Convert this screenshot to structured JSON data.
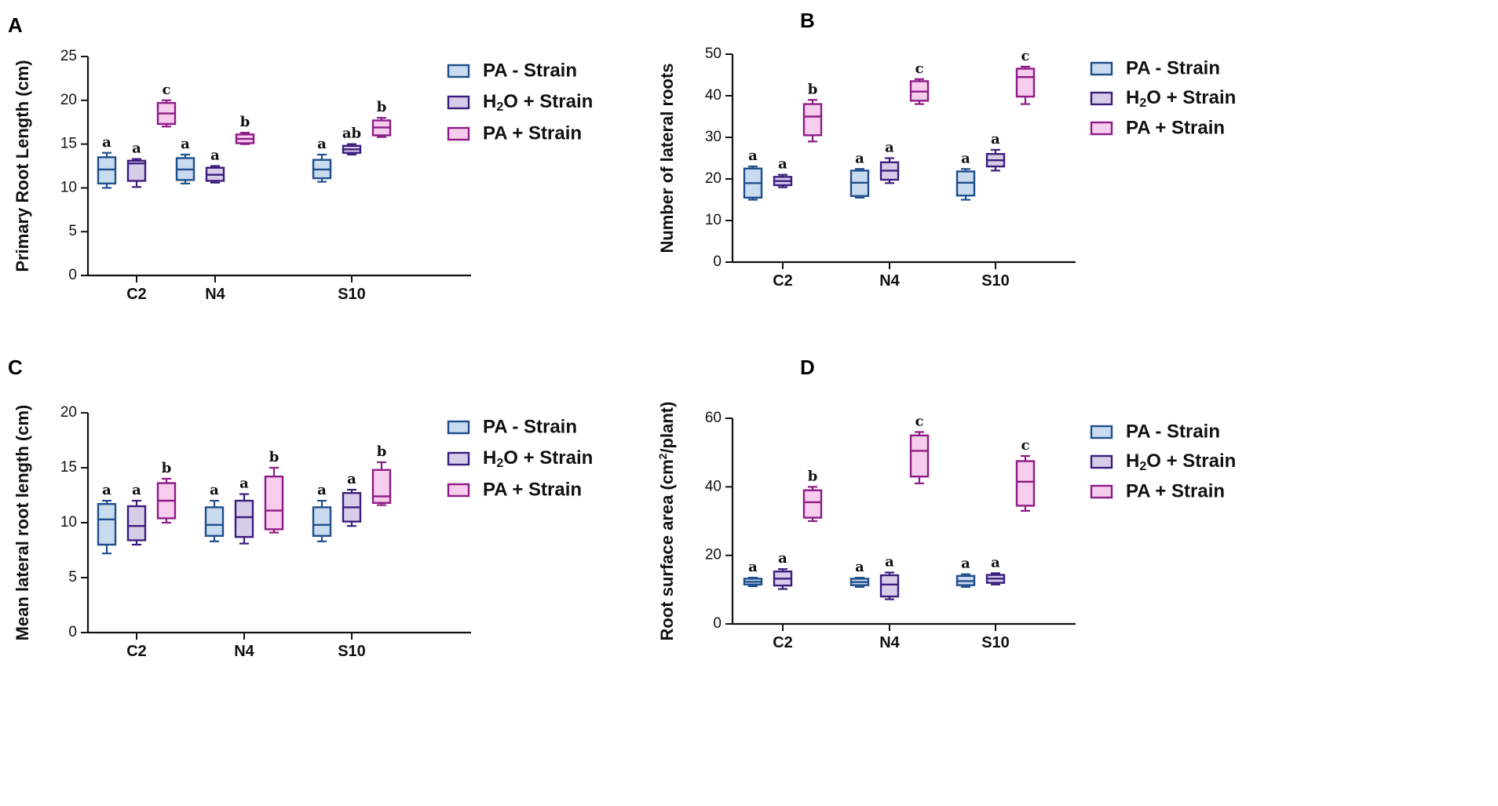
{
  "legend": {
    "items": [
      {
        "name": "PA - Strain",
        "fill": "#c9dbef",
        "stroke": "#1f4e8c"
      },
      {
        "name": "H2O + Strain",
        "fill": "#d8cde9",
        "stroke": "#3b1d7d"
      },
      {
        "name": "PA + Strain",
        "fill": "#f6cdec",
        "stroke": "#8e1b87"
      }
    ]
  },
  "chart_data": [
    {
      "panel": "A",
      "type": "box",
      "ylabel": "Primary Root Length (cm)",
      "ylim": [
        0,
        25
      ],
      "yticks": [
        0,
        5,
        10,
        15,
        20,
        25
      ],
      "categories": [
        "C2",
        "N4",
        "S10"
      ],
      "series": [
        {
          "name": "PA - Strain",
          "boxes": [
            {
              "min": 10.0,
              "q1": 10.5,
              "median": 12.1,
              "q3": 13.5,
              "max": 14.0,
              "sig": "a"
            },
            {
              "min": 10.5,
              "q1": 10.9,
              "median": 12.1,
              "q3": 13.4,
              "max": 13.8,
              "sig": "a"
            },
            {
              "min": 10.7,
              "q1": 11.1,
              "median": 12.1,
              "q3": 13.2,
              "max": 13.8,
              "sig": "a"
            }
          ]
        },
        {
          "name": "H2O + Strain",
          "boxes": [
            {
              "min": 10.1,
              "q1": 10.8,
              "median": 12.8,
              "q3": 13.1,
              "max": 13.3,
              "sig": "a"
            },
            {
              "min": 10.6,
              "q1": 10.8,
              "median": 11.5,
              "q3": 12.3,
              "max": 12.5,
              "sig": "a"
            },
            {
              "min": 13.8,
              "q1": 14.0,
              "median": 14.4,
              "q3": 14.8,
              "max": 15.0,
              "sig": "ab"
            }
          ]
        },
        {
          "name": "PA + Strain",
          "boxes": [
            {
              "min": 17.0,
              "q1": 17.3,
              "median": 18.5,
              "q3": 19.7,
              "max": 20.0,
              "sig": "c"
            },
            {
              "min": 15.0,
              "q1": 15.1,
              "median": 15.6,
              "q3": 16.1,
              "max": 16.3,
              "sig": "b"
            },
            {
              "min": 15.8,
              "q1": 16.0,
              "median": 16.9,
              "q3": 17.7,
              "max": 18.0,
              "sig": "b"
            }
          ]
        }
      ]
    },
    {
      "panel": "B",
      "type": "box",
      "ylabel": "Number of lateral roots",
      "ylim": [
        0,
        50
      ],
      "yticks": [
        0,
        10,
        20,
        30,
        40,
        50
      ],
      "categories": [
        "C2",
        "N4",
        "S10"
      ],
      "series": [
        {
          "name": "PA - Strain",
          "boxes": [
            {
              "min": 15.0,
              "q1": 15.5,
              "median": 19.0,
              "q3": 22.5,
              "max": 23.0,
              "sig": "a"
            },
            {
              "min": 15.5,
              "q1": 15.9,
              "median": 19.1,
              "q3": 22.0,
              "max": 22.4,
              "sig": "a"
            },
            {
              "min": 15.0,
              "q1": 16.0,
              "median": 19.1,
              "q3": 21.8,
              "max": 22.4,
              "sig": "a"
            }
          ]
        },
        {
          "name": "H2O + Strain",
          "boxes": [
            {
              "min": 18.0,
              "q1": 18.5,
              "median": 19.5,
              "q3": 20.5,
              "max": 21.0,
              "sig": "a"
            },
            {
              "min": 19.0,
              "q1": 19.8,
              "median": 22.0,
              "q3": 24.0,
              "max": 25.0,
              "sig": "a"
            },
            {
              "min": 22.0,
              "q1": 23.0,
              "median": 24.5,
              "q3": 26.0,
              "max": 27.0,
              "sig": "a"
            }
          ]
        },
        {
          "name": "PA + Strain",
          "boxes": [
            {
              "min": 29.0,
              "q1": 30.5,
              "median": 35.0,
              "q3": 38.0,
              "max": 39.0,
              "sig": "b"
            },
            {
              "min": 38.0,
              "q1": 38.8,
              "median": 41.0,
              "q3": 43.5,
              "max": 44.0,
              "sig": "c"
            },
            {
              "min": 38.0,
              "q1": 39.8,
              "median": 44.5,
              "q3": 46.5,
              "max": 47.0,
              "sig": "c"
            }
          ]
        }
      ]
    },
    {
      "panel": "C",
      "type": "box",
      "ylabel": "Mean lateral root length (cm)",
      "ylim": [
        0,
        20
      ],
      "yticks": [
        0,
        5,
        10,
        15,
        20
      ],
      "categories": [
        "C2",
        "N4",
        "S10"
      ],
      "series": [
        {
          "name": "PA - Strain",
          "boxes": [
            {
              "min": 7.2,
              "q1": 8.0,
              "median": 10.3,
              "q3": 11.7,
              "max": 12.0,
              "sig": "a"
            },
            {
              "min": 8.3,
              "q1": 8.8,
              "median": 9.8,
              "q3": 11.4,
              "max": 12.0,
              "sig": "a"
            },
            {
              "min": 8.3,
              "q1": 8.8,
              "median": 9.8,
              "q3": 11.4,
              "max": 12.0,
              "sig": "a"
            }
          ]
        },
        {
          "name": "H2O + Strain",
          "boxes": [
            {
              "min": 8.0,
              "q1": 8.4,
              "median": 9.7,
              "q3": 11.5,
              "max": 12.0,
              "sig": "a"
            },
            {
              "min": 8.1,
              "q1": 8.7,
              "median": 10.5,
              "q3": 12.0,
              "max": 12.6,
              "sig": "a"
            },
            {
              "min": 9.7,
              "q1": 10.1,
              "median": 11.4,
              "q3": 12.7,
              "max": 13.0,
              "sig": "a"
            }
          ]
        },
        {
          "name": "PA + Strain",
          "boxes": [
            {
              "min": 10.0,
              "q1": 10.4,
              "median": 12.0,
              "q3": 13.6,
              "max": 14.0,
              "sig": "b"
            },
            {
              "min": 9.1,
              "q1": 9.4,
              "median": 11.1,
              "q3": 14.2,
              "max": 15.0,
              "sig": "b"
            },
            {
              "min": 11.6,
              "q1": 11.8,
              "median": 12.4,
              "q3": 14.8,
              "max": 15.5,
              "sig": "b"
            }
          ]
        }
      ]
    },
    {
      "panel": "D",
      "type": "box",
      "ylabel": "Root surface area (cm2/plant)",
      "ylim": [
        0,
        60
      ],
      "yticks": [
        0,
        20,
        40,
        60
      ],
      "categories": [
        "C2",
        "N4",
        "S10"
      ],
      "series": [
        {
          "name": "PA - Strain",
          "boxes": [
            {
              "min": 11.0,
              "q1": 11.5,
              "median": 12.3,
              "q3": 13.2,
              "max": 13.5,
              "sig": "a"
            },
            {
              "min": 10.8,
              "q1": 11.3,
              "median": 12.2,
              "q3": 13.2,
              "max": 13.5,
              "sig": "a"
            },
            {
              "min": 10.8,
              "q1": 11.3,
              "median": 12.5,
              "q3": 14.0,
              "max": 14.5,
              "sig": "a"
            }
          ]
        },
        {
          "name": "H2O + Strain",
          "boxes": [
            {
              "min": 10.2,
              "q1": 11.2,
              "median": 13.2,
              "q3": 15.3,
              "max": 16.0,
              "sig": "a"
            },
            {
              "min": 7.2,
              "q1": 8.0,
              "median": 11.5,
              "q3": 14.2,
              "max": 15.0,
              "sig": "a"
            },
            {
              "min": 11.5,
              "q1": 12.0,
              "median": 13.2,
              "q3": 14.3,
              "max": 14.8,
              "sig": "a"
            }
          ]
        },
        {
          "name": "PA + Strain",
          "boxes": [
            {
              "min": 30.0,
              "q1": 31.0,
              "median": 35.5,
              "q3": 39.0,
              "max": 40.0,
              "sig": "b"
            },
            {
              "min": 41.0,
              "q1": 43.0,
              "median": 50.5,
              "q3": 55.0,
              "max": 56.0,
              "sig": "c"
            },
            {
              "min": 33.0,
              "q1": 34.5,
              "median": 41.5,
              "q3": 47.5,
              "max": 49.0,
              "sig": "c"
            }
          ]
        }
      ]
    }
  ]
}
